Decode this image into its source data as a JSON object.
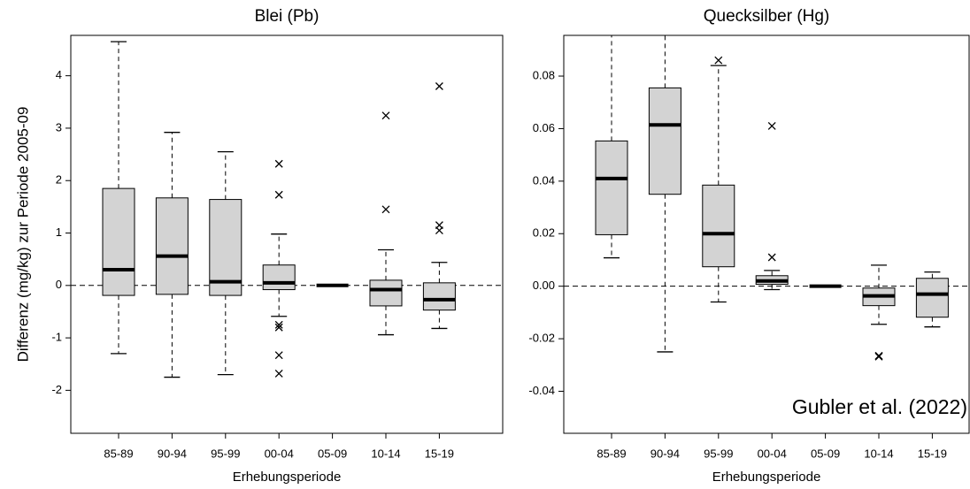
{
  "chart_data": [
    {
      "type": "box",
      "title": "Blei (Pb)",
      "y_label": "Differenz (mg/kg) zur Periode 2005-09",
      "x_label": "Erhebungsperiode",
      "categories": [
        "85-89",
        "90-94",
        "95-99",
        "00-04",
        "05-09",
        "10-14",
        "15-19"
      ],
      "color": "#d3d3d3",
      "reference_line": 0,
      "ylim": [
        -2.82,
        4.77
      ],
      "yticks": [
        -2,
        -1,
        0,
        1,
        2,
        3,
        4
      ],
      "boxes": [
        {
          "whisker_low": -1.3,
          "q1": -0.19,
          "median": 0.3,
          "q3": 1.85,
          "whisker_high": 4.65,
          "outliers": []
        },
        {
          "whisker_low": -1.75,
          "q1": -0.17,
          "median": 0.56,
          "q3": 1.67,
          "whisker_high": 2.92,
          "outliers": []
        },
        {
          "whisker_low": -1.7,
          "q1": -0.19,
          "median": 0.07,
          "q3": 1.64,
          "whisker_high": 2.55,
          "outliers": []
        },
        {
          "whisker_low": -0.59,
          "q1": -0.08,
          "median": 0.05,
          "q3": 0.39,
          "whisker_high": 0.98,
          "outliers": [
            2.32,
            1.73,
            -0.75,
            -0.8,
            -1.33,
            -1.68
          ]
        },
        {
          "whisker_low": 0,
          "q1": 0,
          "median": 0,
          "q3": 0,
          "whisker_high": 0,
          "outliers": []
        },
        {
          "whisker_low": -0.94,
          "q1": -0.39,
          "median": -0.08,
          "q3": 0.1,
          "whisker_high": 0.68,
          "outliers": [
            3.24,
            1.45
          ]
        },
        {
          "whisker_low": -0.82,
          "q1": -0.47,
          "median": -0.27,
          "q3": 0.05,
          "whisker_high": 0.44,
          "outliers": [
            3.8,
            1.15,
            1.05
          ]
        }
      ]
    },
    {
      "type": "box",
      "title": "Quecksilber (Hg)",
      "x_label": "Erhebungsperiode",
      "annotation": "Gubler et al. (2022)",
      "categories": [
        "85-89",
        "90-94",
        "95-99",
        "00-04",
        "05-09",
        "10-14",
        "15-19"
      ],
      "color": "#d3d3d3",
      "reference_line": 0,
      "ylim": [
        -0.056,
        0.0955
      ],
      "yticks": [
        -0.04,
        -0.02,
        {
          "value": 0,
          "label": "0.00"
        },
        0.02,
        0.04,
        0.06,
        0.08
      ],
      "boxes": [
        {
          "whisker_low": 0.0108,
          "q1": 0.0196,
          "median": 0.041,
          "q3": 0.0553,
          "whisker_high": 0.1,
          "outliers": []
        },
        {
          "whisker_low": -0.025,
          "q1": 0.035,
          "median": 0.0614,
          "q3": 0.0755,
          "whisker_high": 0.1,
          "outliers": []
        },
        {
          "whisker_low": -0.006,
          "q1": 0.0074,
          "median": 0.02,
          "q3": 0.0385,
          "whisker_high": 0.084,
          "outliers": [
            0.086
          ]
        },
        {
          "whisker_low": -0.0013,
          "q1": 0.0007,
          "median": 0.002,
          "q3": 0.004,
          "whisker_high": 0.006,
          "outliers": [
            0.061,
            0.011
          ]
        },
        {
          "whisker_low": 0,
          "q1": 0,
          "median": 0,
          "q3": 0,
          "whisker_high": 0,
          "outliers": []
        },
        {
          "whisker_low": -0.0145,
          "q1": -0.0074,
          "median": -0.0037,
          "q3": -0.0007,
          "whisker_high": 0.008,
          "outliers": [
            -0.0265,
            -0.0268
          ]
        },
        {
          "whisker_low": -0.0155,
          "q1": -0.0118,
          "median": -0.003,
          "q3": 0.003,
          "whisker_high": 0.0054,
          "outliers": []
        }
      ]
    }
  ]
}
